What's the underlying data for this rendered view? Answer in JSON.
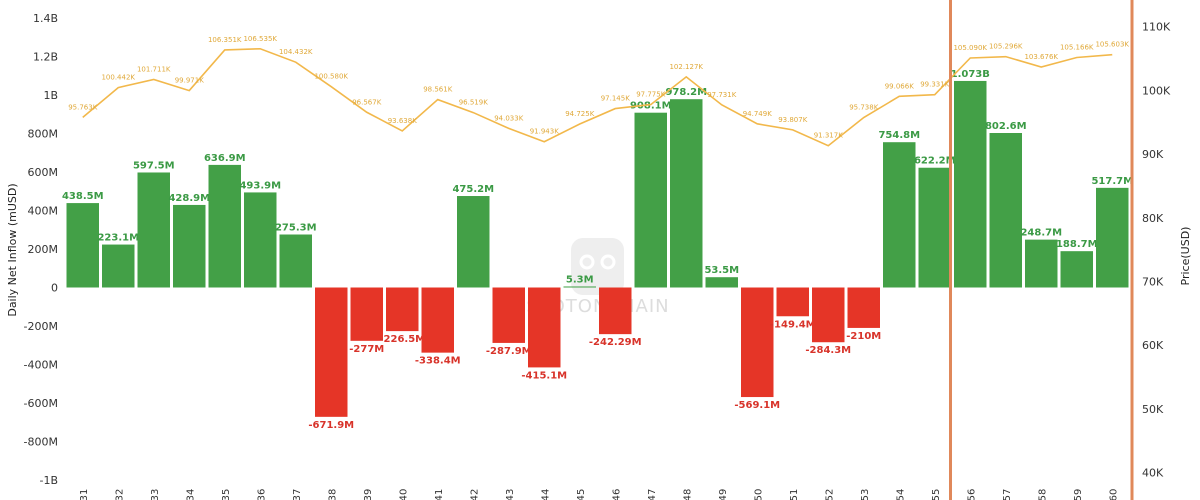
{
  "chart_data": {
    "type": "bar",
    "ylabel": "Daily Net Inflow (mUSD)",
    "y2label": "Price(USD)",
    "ylim": [
      -1000,
      1400
    ],
    "y2lim": [
      37,
      115
    ],
    "yticks": [
      "-1B",
      "-800M",
      "-600M",
      "-400M",
      "-200M",
      "0",
      "200M",
      "400M",
      "600M",
      "800M",
      "1B",
      "1.2B",
      "1.4B"
    ],
    "y2ticks": [
      "40K",
      "50K",
      "60K",
      "70K",
      "80K",
      "90K",
      "100K",
      "110K"
    ],
    "categories": [
      "31",
      "32",
      "33",
      "34",
      "35",
      "36",
      "37",
      "38",
      "39",
      "40",
      "41",
      "42",
      "43",
      "44",
      "45",
      "46",
      "47",
      "48",
      "49",
      "50",
      "51",
      "52",
      "53",
      "54",
      "55",
      "56",
      "57",
      "58",
      "59",
      "60"
    ],
    "series": [
      {
        "type": "bar",
        "values": [
          438.5,
          223.1,
          597.5,
          428.9,
          636.9,
          493.9,
          275.3,
          -671.9,
          -277,
          -226.5,
          -338.4,
          475.2,
          -287.9,
          -415.1,
          5.3,
          -242.29,
          908.1,
          978.2,
          53.5,
          -569.1,
          -149.4,
          -284.3,
          -210,
          754.8,
          622.2,
          1073,
          802.6,
          248.7,
          188.7,
          517.7
        ],
        "labels": [
          "438.5M",
          "223.1M",
          "597.5M",
          "428.9M",
          "636.9M",
          "493.9M",
          "275.3M",
          "-671.9M",
          "-277M",
          "-226.5M",
          "-338.4M",
          "475.2M",
          "-287.9M",
          "-415.1M",
          "5.3M",
          "-242.29M",
          "908.1M",
          "978.2M",
          "53.5M",
          "-569.1M",
          "-149.4M",
          "-284.3M",
          "-210M",
          "754.8M",
          "622.2M",
          "1.073B",
          "802.6M",
          "248.7M",
          "188.7M",
          "517.7M"
        ]
      },
      {
        "type": "line",
        "axis": "y2",
        "values": [
          95.763,
          100.442,
          101.711,
          99.971,
          106.351,
          106.535,
          104.432,
          100.58,
          96.567,
          93.638,
          98.561,
          96.519,
          94.033,
          91.943,
          94.725,
          97.145,
          97.775,
          102.127,
          97.731,
          94.749,
          93.807,
          91.317,
          95.738,
          99.066,
          99.331,
          105.09,
          105.296,
          103.676,
          105.166,
          105.603
        ],
        "labels": [
          "95.763K",
          "100.442K",
          "101.711K",
          "99.971K",
          "106.351K",
          "106.535K",
          "104.432K",
          "100.580K",
          "96.567K",
          "93.638K",
          "98.561K",
          "96.519K",
          "94.033K",
          "91.943K",
          "94.725K",
          "97.145K",
          "97.775K",
          "102.127K",
          "97.731K",
          "94.749K",
          "93.807K",
          "91.317K",
          "95.738K",
          "99.066K",
          "99.331K",
          "105.090K",
          "105.296K",
          "103.676K",
          "105.166K",
          "105.603K"
        ]
      }
    ],
    "highlight_range": [
      "56",
      "60"
    ],
    "grid": false,
    "colors": {
      "positive": "#43a047",
      "negative": "#e53527",
      "positive_label": "#3b9a45",
      "negative_label": "#d8332a",
      "price_line": "#f2b84b",
      "price_label": "#e0a93a",
      "highlight_border": "#e0885a"
    }
  },
  "watermark": {
    "text": "SPOTONCHAIN",
    "icon": "spotonchain-logo-icon"
  }
}
